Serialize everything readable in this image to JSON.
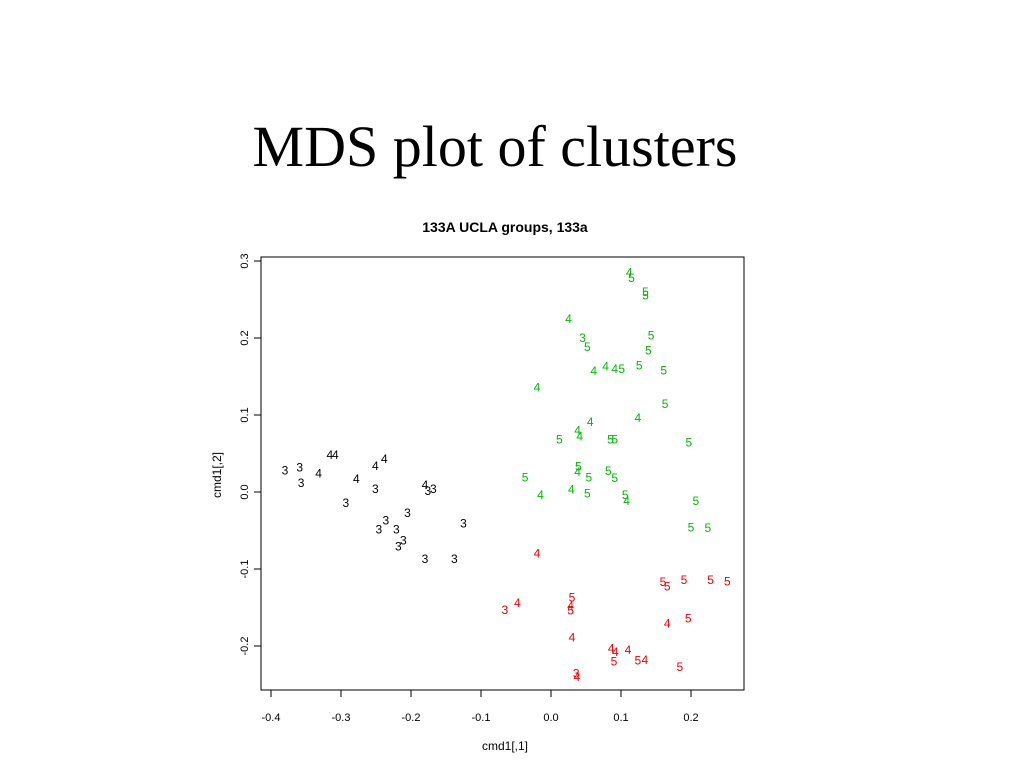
{
  "slide": {
    "title": "MDS plot of clusters"
  },
  "chart_data": {
    "type": "scatter",
    "title": "133A UCLA groups, 133a",
    "xlabel": "cmd1[,1]",
    "ylabel": "cmd1[,2]",
    "xlim": [
      -0.4,
      0.25
    ],
    "ylim": [
      -0.26,
      0.3
    ],
    "x_ticks": [
      "-0.4",
      "-0.3",
      "-0.2",
      "-0.1",
      "0.0",
      "0.1",
      "0.2"
    ],
    "y_ticks": [
      "-0.2",
      "-0.1",
      "0.0",
      "0.1",
      "0.2",
      "0.3"
    ],
    "grid": false,
    "legend": "none",
    "marker": "text-label",
    "series": [
      {
        "color": "#000000",
        "points": [
          {
            "x": -0.38,
            "y": 0.028,
            "label": "3"
          },
          {
            "x": -0.359,
            "y": 0.032,
            "label": "3"
          },
          {
            "x": -0.357,
            "y": 0.012,
            "label": "3"
          },
          {
            "x": -0.332,
            "y": 0.024,
            "label": "4"
          },
          {
            "x": -0.316,
            "y": 0.048,
            "label": "4"
          },
          {
            "x": -0.308,
            "y": 0.048,
            "label": "4"
          },
          {
            "x": -0.293,
            "y": -0.014,
            "label": "3"
          },
          {
            "x": -0.278,
            "y": 0.017,
            "label": "4"
          },
          {
            "x": -0.251,
            "y": 0.034,
            "label": "4"
          },
          {
            "x": -0.251,
            "y": 0.004,
            "label": "3"
          },
          {
            "x": -0.238,
            "y": 0.043,
            "label": "4"
          },
          {
            "x": -0.236,
            "y": -0.037,
            "label": "3"
          },
          {
            "x": -0.246,
            "y": -0.049,
            "label": "3"
          },
          {
            "x": -0.221,
            "y": -0.049,
            "label": "3"
          },
          {
            "x": -0.211,
            "y": -0.063,
            "label": "3"
          },
          {
            "x": -0.218,
            "y": -0.071,
            "label": "3"
          },
          {
            "x": -0.205,
            "y": -0.027,
            "label": "3"
          },
          {
            "x": -0.18,
            "y": -0.087,
            "label": "3"
          },
          {
            "x": -0.18,
            "y": 0.009,
            "label": "4"
          },
          {
            "x": -0.176,
            "y": 0.001,
            "label": "3"
          },
          {
            "x": -0.168,
            "y": 0.004,
            "label": "3"
          },
          {
            "x": -0.138,
            "y": -0.087,
            "label": "3"
          },
          {
            "x": -0.125,
            "y": -0.041,
            "label": "3"
          }
        ]
      },
      {
        "color": "#00bb00",
        "points": [
          {
            "x": 0.112,
            "y": 0.285,
            "label": "4"
          },
          {
            "x": 0.115,
            "y": 0.278,
            "label": "5"
          },
          {
            "x": 0.135,
            "y": 0.26,
            "label": "5"
          },
          {
            "x": 0.135,
            "y": 0.255,
            "label": "5"
          },
          {
            "x": 0.025,
            "y": 0.225,
            "label": "4"
          },
          {
            "x": 0.045,
            "y": 0.2,
            "label": "3"
          },
          {
            "x": 0.052,
            "y": 0.188,
            "label": "5"
          },
          {
            "x": 0.143,
            "y": 0.203,
            "label": "5"
          },
          {
            "x": 0.139,
            "y": 0.184,
            "label": "5"
          },
          {
            "x": 0.078,
            "y": 0.163,
            "label": "4"
          },
          {
            "x": 0.091,
            "y": 0.16,
            "label": "4"
          },
          {
            "x": 0.101,
            "y": 0.16,
            "label": "5"
          },
          {
            "x": 0.126,
            "y": 0.164,
            "label": "5"
          },
          {
            "x": 0.161,
            "y": 0.158,
            "label": "5"
          },
          {
            "x": 0.061,
            "y": 0.157,
            "label": "4"
          },
          {
            "x": -0.02,
            "y": 0.136,
            "label": "4"
          },
          {
            "x": 0.163,
            "y": 0.114,
            "label": "5"
          },
          {
            "x": 0.124,
            "y": 0.096,
            "label": "4"
          },
          {
            "x": 0.056,
            "y": 0.091,
            "label": "4"
          },
          {
            "x": 0.038,
            "y": 0.08,
            "label": "4"
          },
          {
            "x": 0.041,
            "y": 0.072,
            "label": "4"
          },
          {
            "x": 0.012,
            "y": 0.068,
            "label": "5"
          },
          {
            "x": 0.085,
            "y": 0.068,
            "label": "5"
          },
          {
            "x": 0.091,
            "y": 0.068,
            "label": "5"
          },
          {
            "x": 0.197,
            "y": 0.064,
            "label": "5"
          },
          {
            "x": 0.039,
            "y": 0.033,
            "label": "5"
          },
          {
            "x": 0.038,
            "y": 0.026,
            "label": "4"
          },
          {
            "x": 0.054,
            "y": 0.019,
            "label": "5"
          },
          {
            "x": 0.082,
            "y": 0.027,
            "label": "5"
          },
          {
            "x": 0.091,
            "y": 0.018,
            "label": "5"
          },
          {
            "x": -0.037,
            "y": 0.019,
            "label": "5"
          },
          {
            "x": 0.029,
            "y": 0.003,
            "label": "4"
          },
          {
            "x": 0.052,
            "y": -0.002,
            "label": "5"
          },
          {
            "x": -0.015,
            "y": -0.004,
            "label": "4"
          },
          {
            "x": 0.106,
            "y": -0.004,
            "label": "5"
          },
          {
            "x": 0.108,
            "y": -0.012,
            "label": "4"
          },
          {
            "x": 0.207,
            "y": -0.012,
            "label": "5"
          },
          {
            "x": 0.2,
            "y": -0.046,
            "label": "5"
          },
          {
            "x": 0.224,
            "y": -0.047,
            "label": "5"
          }
        ]
      },
      {
        "color": "#ee0000",
        "points": [
          {
            "x": -0.02,
            "y": -0.08,
            "label": "4"
          },
          {
            "x": 0.19,
            "y": -0.114,
            "label": "5"
          },
          {
            "x": 0.228,
            "y": -0.114,
            "label": "5"
          },
          {
            "x": 0.252,
            "y": -0.116,
            "label": "5"
          },
          {
            "x": 0.16,
            "y": -0.117,
            "label": "5"
          },
          {
            "x": 0.166,
            "y": -0.123,
            "label": "5"
          },
          {
            "x": 0.03,
            "y": -0.137,
            "label": "5"
          },
          {
            "x": -0.048,
            "y": -0.144,
            "label": "4"
          },
          {
            "x": -0.066,
            "y": -0.153,
            "label": "3"
          },
          {
            "x": 0.028,
            "y": -0.148,
            "label": "4"
          },
          {
            "x": 0.028,
            "y": -0.154,
            "label": "5"
          },
          {
            "x": 0.196,
            "y": -0.164,
            "label": "5"
          },
          {
            "x": 0.166,
            "y": -0.171,
            "label": "4"
          },
          {
            "x": 0.03,
            "y": -0.189,
            "label": "4"
          },
          {
            "x": 0.086,
            "y": -0.203,
            "label": "4"
          },
          {
            "x": 0.092,
            "y": -0.208,
            "label": "4"
          },
          {
            "x": 0.11,
            "y": -0.205,
            "label": "4"
          },
          {
            "x": 0.09,
            "y": -0.22,
            "label": "5"
          },
          {
            "x": 0.124,
            "y": -0.219,
            "label": "5"
          },
          {
            "x": 0.134,
            "y": -0.218,
            "label": "4"
          },
          {
            "x": 0.184,
            "y": -0.227,
            "label": "5"
          },
          {
            "x": 0.036,
            "y": -0.236,
            "label": "3"
          },
          {
            "x": 0.037,
            "y": -0.24,
            "label": "4"
          }
        ]
      }
    ]
  }
}
